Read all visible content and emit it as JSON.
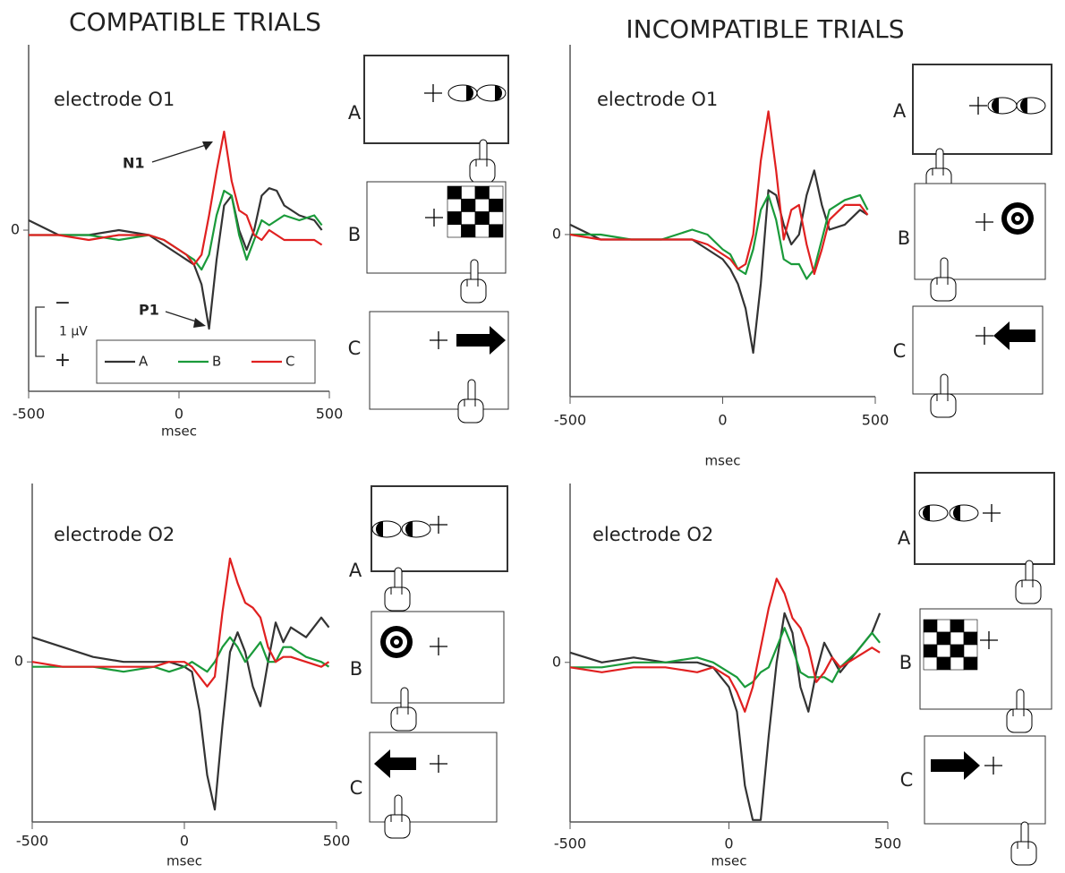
{
  "columns": [
    "COMPATIBLE TRIALS",
    "INCOMPATIBLE TRIALS"
  ],
  "stimuli": [
    [
      "A",
      "B",
      "C"
    ],
    [
      "A",
      "B",
      "C"
    ],
    [
      "A",
      "B",
      "C"
    ],
    [
      "A",
      "B",
      "C"
    ]
  ],
  "chart_data": [
    {
      "type": "line",
      "title": "electrode O1",
      "x_label": "msec",
      "xlim": [
        -500,
        500
      ],
      "xticks": [
        -500,
        0,
        500
      ],
      "ylim": [
        3.27,
        -3.58
      ],
      "yticks": [
        0
      ],
      "x": [
        -500,
        -400,
        -300,
        -200,
        -100,
        -50,
        0,
        25,
        50,
        75,
        100,
        125,
        150,
        175,
        200,
        225,
        250,
        275,
        300,
        325,
        350,
        400,
        450,
        475
      ],
      "series": [
        {
          "name": "A",
          "color": "#333333",
          "values": [
            -0.2,
            0.1,
            0.1,
            0,
            0.1,
            0.3,
            0.5,
            0.6,
            0.7,
            1.1,
            2.0,
            0.6,
            -0.5,
            -0.7,
            0,
            0.4,
            0,
            -0.7,
            -0.85,
            -0.8,
            -0.5,
            -0.3,
            -0.2,
            0
          ]
        },
        {
          "name": "B",
          "color": "#1a9a3a",
          "values": [
            0.1,
            0.1,
            0.1,
            0.2,
            0.1,
            0.2,
            0.4,
            0.5,
            0.6,
            0.8,
            0.5,
            -0.3,
            -0.8,
            -0.7,
            0.1,
            0.6,
            0.2,
            -0.2,
            -0.1,
            -0.2,
            -0.3,
            -0.2,
            -0.3,
            -0.1
          ]
        },
        {
          "name": "C",
          "color": "#e02020",
          "values": [
            0.1,
            0.1,
            0.2,
            0.1,
            0.1,
            0.2,
            0.4,
            0.5,
            0.7,
            0.5,
            -0.3,
            -1.2,
            -2.0,
            -1.0,
            -0.4,
            -0.3,
            0.1,
            0.2,
            0,
            0.1,
            0.2,
            0.2,
            0.2,
            0.3
          ]
        }
      ],
      "legend": "lower right",
      "annotations": [
        "N1",
        "P1"
      ],
      "scale_bar": {
        "value": 1,
        "label": "1 µV",
        "top_label": "−",
        "bottom_label": "+"
      }
    },
    {
      "type": "line",
      "title": "electrode O1",
      "x_label": "msec",
      "xlim": [
        -500,
        500
      ],
      "xticks": [
        -500,
        0,
        500
      ],
      "ylim": [
        3.29,
        -3.67
      ],
      "yticks": [
        0
      ],
      "x": [
        -500,
        -400,
        -300,
        -200,
        -100,
        -50,
        0,
        25,
        50,
        75,
        100,
        125,
        150,
        175,
        200,
        225,
        250,
        275,
        300,
        325,
        350,
        400,
        450,
        475
      ],
      "series": [
        {
          "color": "#333333",
          "values": [
            -0.2,
            0.1,
            0.1,
            0.1,
            0.1,
            0.3,
            0.5,
            0.7,
            1.0,
            1.5,
            2.4,
            1.0,
            -0.9,
            -0.8,
            -0.2,
            0.2,
            0,
            -0.8,
            -1.3,
            -0.6,
            -0.1,
            -0.2,
            -0.5,
            -0.4
          ]
        },
        {
          "color": "#1a9a3a",
          "values": [
            0,
            0,
            0.1,
            0.1,
            -0.1,
            0,
            0.3,
            0.4,
            0.7,
            0.8,
            0.3,
            -0.5,
            -0.8,
            -0.3,
            0.5,
            0.6,
            0.6,
            0.9,
            0.7,
            0.1,
            -0.5,
            -0.7,
            -0.8,
            -0.5
          ]
        },
        {
          "color": "#e02020",
          "values": [
            0,
            0.1,
            0.1,
            0.1,
            0.1,
            0.2,
            0.4,
            0.5,
            0.7,
            0.6,
            0,
            -1.5,
            -2.5,
            -1.3,
            0.1,
            -0.5,
            -0.6,
            0.2,
            0.8,
            0.3,
            -0.3,
            -0.6,
            -0.6,
            -0.4
          ]
        }
      ]
    },
    {
      "type": "line",
      "title": "electrode O2",
      "x_label": "msec",
      "xlim": [
        -500,
        500
      ],
      "xticks": [
        -500,
        0,
        500
      ],
      "ylim": [
        3.25,
        -3.44
      ],
      "yticks": [
        0
      ],
      "x": [
        -500,
        -400,
        -300,
        -200,
        -100,
        -50,
        0,
        25,
        50,
        75,
        100,
        125,
        150,
        175,
        200,
        225,
        250,
        275,
        300,
        325,
        350,
        400,
        450,
        475
      ],
      "series": [
        {
          "color": "#333333",
          "values": [
            -0.5,
            -0.3,
            -0.1,
            0,
            0,
            0,
            0.1,
            0.2,
            1.0,
            2.3,
            3.0,
            1.3,
            -0.2,
            -0.6,
            -0.2,
            0.5,
            0.9,
            0,
            -0.8,
            -0.4,
            -0.7,
            -0.5,
            -0.9,
            -0.7
          ]
        },
        {
          "color": "#1a9a3a",
          "values": [
            0.1,
            0.1,
            0.1,
            0.2,
            0.1,
            0.2,
            0.1,
            0,
            0.1,
            0.2,
            0,
            -0.3,
            -0.5,
            -0.3,
            0,
            -0.2,
            -0.4,
            0,
            0,
            -0.3,
            -0.3,
            -0.1,
            0,
            0.1
          ]
        },
        {
          "color": "#e02020",
          "values": [
            0,
            0.1,
            0.1,
            0.1,
            0.1,
            0,
            0,
            0.1,
            0.3,
            0.5,
            0.3,
            -1.0,
            -2.1,
            -1.6,
            -1.2,
            -1.1,
            -0.9,
            -0.3,
            0,
            -0.1,
            -0.1,
            0,
            0.1,
            0
          ]
        }
      ]
    },
    {
      "type": "line",
      "title": "electrode O2",
      "x_label": "msec",
      "xlim": [
        -500,
        500
      ],
      "xticks": [
        -500,
        0,
        500
      ],
      "ylim": [
        3.24,
        -3.45
      ],
      "yticks": [
        0
      ],
      "x": [
        -500,
        -400,
        -300,
        -200,
        -100,
        -50,
        0,
        25,
        50,
        75,
        100,
        125,
        150,
        175,
        200,
        225,
        250,
        275,
        300,
        325,
        350,
        400,
        450,
        475
      ],
      "series": [
        {
          "color": "#333333",
          "values": [
            -0.2,
            0,
            -0.1,
            0,
            0,
            0.1,
            0.5,
            1.0,
            2.5,
            3.2,
            3.2,
            1.5,
            0,
            -1.0,
            -0.6,
            0.5,
            1.0,
            0.2,
            -0.4,
            -0.1,
            0.2,
            -0.2,
            -0.6,
            -1.0
          ]
        },
        {
          "color": "#1a9a3a",
          "values": [
            0.1,
            0.1,
            0,
            0,
            -0.1,
            0,
            0.2,
            0.3,
            0.5,
            0.4,
            0.2,
            0.1,
            -0.3,
            -0.7,
            -0.3,
            0.2,
            0.3,
            0.3,
            0.3,
            0.4,
            0.1,
            -0.2,
            -0.6,
            -0.4
          ]
        },
        {
          "color": "#e02020",
          "values": [
            0.1,
            0.2,
            0.1,
            0.1,
            0.2,
            0.1,
            0.3,
            0.6,
            1.0,
            0.5,
            -0.3,
            -1.1,
            -1.7,
            -1.4,
            -0.9,
            -0.7,
            -0.3,
            0.4,
            0.2,
            -0.1,
            0.1,
            -0.1,
            -0.3,
            -0.2
          ]
        }
      ]
    }
  ]
}
